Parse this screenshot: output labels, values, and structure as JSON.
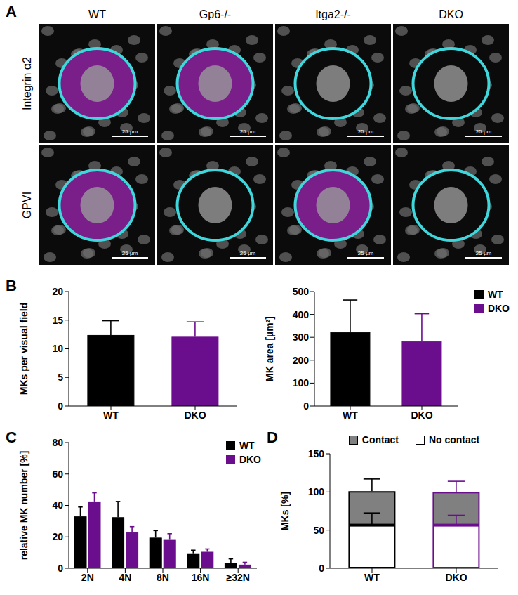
{
  "panel_labels": [
    "A",
    "B",
    "C",
    "D"
  ],
  "panel_a": {
    "columns": [
      "WT",
      "Gp6-/-",
      "Itga2-/-",
      "DKO"
    ],
    "rows": [
      "Integrin α2",
      "GPVI"
    ],
    "scale_bar": "25 µm"
  },
  "chart_data": [
    {
      "type": "bar",
      "categories": [
        "WT",
        "DKO"
      ],
      "values": [
        12.4,
        12.1
      ],
      "errors": [
        2.5,
        2.6
      ],
      "colors": [
        "#000000",
        "#6b0e8e"
      ],
      "y_label": "MKs per visual field",
      "ylim": [
        0,
        20
      ],
      "yticks": [
        0,
        5,
        10,
        15,
        20
      ]
    },
    {
      "type": "bar",
      "categories": [
        "WT",
        "DKO"
      ],
      "values": [
        323,
        283
      ],
      "errors": [
        140,
        120
      ],
      "colors": [
        "#000000",
        "#6b0e8e"
      ],
      "y_label": "MK area [µm²]",
      "ylim": [
        0,
        500
      ],
      "yticks": [
        0,
        100,
        200,
        300,
        400,
        500
      ],
      "legend": "top-right"
    },
    {
      "type": "bar",
      "categories": [
        "2N",
        "4N",
        "8N",
        "16N",
        "≥32N"
      ],
      "series": [
        {
          "name": "WT",
          "color": "#000000",
          "values": [
            33,
            32.5,
            19.5,
            9.5,
            3.5
          ],
          "errors": [
            6,
            10,
            4.5,
            2,
            2.5
          ]
        },
        {
          "name": "DKO",
          "color": "#6b0e8e",
          "values": [
            42.5,
            23,
            18.5,
            10.5,
            2.3
          ],
          "errors": [
            5.5,
            3.5,
            3.5,
            1.8,
            1.5
          ]
        }
      ],
      "y_label": "relative MK number [%]",
      "ylim": [
        0,
        80
      ],
      "yticks": [
        0,
        20,
        40,
        60,
        80
      ],
      "legend": "top-right"
    },
    {
      "type": "bar",
      "stacked": true,
      "categories": [
        "WT",
        "DKO"
      ],
      "colors": [
        "#000000",
        "#6b0e8e"
      ],
      "series": [
        {
          "name": "No contact",
          "color": "#ffffff",
          "values": [
            56.5,
            56.5
          ],
          "errors": [
            16,
            13
          ]
        },
        {
          "name": "Contact",
          "color": "#808080",
          "values": [
            44.5,
            43.5
          ],
          "errors": [
            16,
            14
          ]
        }
      ],
      "y_label": "MKs [%]",
      "ylim": [
        0,
        150
      ],
      "yticks": [
        0,
        50,
        100,
        150
      ],
      "legend": "top"
    }
  ]
}
